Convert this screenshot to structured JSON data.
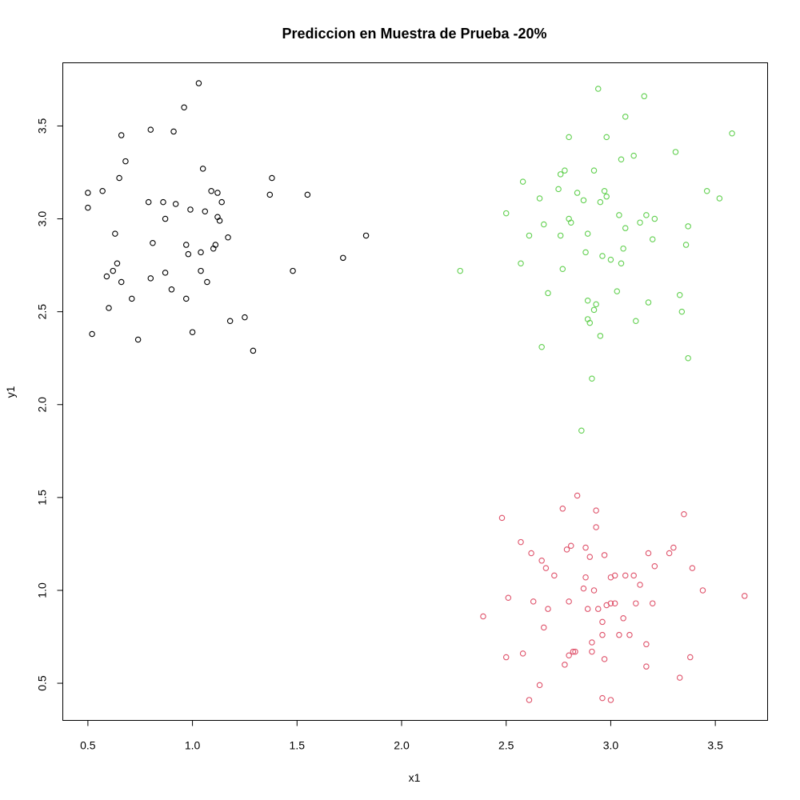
{
  "chart_data": {
    "type": "scatter",
    "title": "Prediccion en Muestra de Prueba -20%",
    "xlabel": "x1",
    "ylabel": "y1",
    "xlim": [
      0.38,
      3.75
    ],
    "ylim": [
      0.3,
      3.84
    ],
    "x_ticks": [
      0.5,
      1.0,
      1.5,
      2.0,
      2.5,
      3.0,
      3.5
    ],
    "x_tick_labels": [
      "0.5",
      "1.0",
      "1.5",
      "2.0",
      "2.5",
      "3.0",
      "3.5"
    ],
    "y_ticks": [
      0.5,
      1.0,
      1.5,
      2.0,
      2.5,
      3.0,
      3.5
    ],
    "y_tick_labels": [
      "0.5",
      "1.0",
      "1.5",
      "2.0",
      "2.5",
      "3.0",
      "3.5"
    ],
    "grid": false,
    "legend": "none",
    "series": [
      {
        "color": "#000000",
        "x": [
          0.5,
          0.5,
          0.52,
          0.57,
          0.59,
          0.6,
          0.62,
          0.63,
          0.64,
          0.65,
          0.66,
          0.66,
          0.68,
          0.71,
          0.74,
          0.79,
          0.8,
          0.8,
          0.81,
          0.86,
          0.87,
          0.87,
          0.9,
          0.91,
          0.92,
          0.96,
          0.97,
          0.97,
          0.98,
          0.99,
          1.0,
          1.03,
          1.04,
          1.04,
          1.05,
          1.06,
          1.07,
          1.09,
          1.1,
          1.11,
          1.12,
          1.12,
          1.13,
          1.14,
          1.17,
          1.18,
          1.25,
          1.29,
          1.37,
          1.38,
          1.48,
          1.55,
          1.72,
          1.83
        ],
        "y": [
          3.14,
          3.06,
          2.38,
          3.15,
          2.69,
          2.52,
          2.72,
          2.92,
          2.76,
          3.22,
          3.45,
          2.66,
          3.31,
          2.57,
          2.35,
          3.09,
          3.48,
          2.68,
          2.87,
          3.09,
          2.71,
          3.0,
          2.62,
          3.47,
          3.08,
          3.6,
          2.57,
          2.86,
          2.81,
          3.05,
          2.39,
          3.73,
          2.72,
          2.82,
          3.27,
          3.04,
          2.66,
          3.15,
          2.84,
          2.86,
          3.14,
          3.01,
          2.99,
          3.09,
          2.9,
          2.45,
          2.47,
          2.29,
          3.13,
          3.22,
          2.72,
          3.13,
          2.79,
          2.91
        ]
      },
      {
        "color": "#61D04F",
        "x": [
          2.28,
          2.5,
          2.57,
          2.58,
          2.61,
          2.66,
          2.67,
          2.68,
          2.7,
          2.75,
          2.76,
          2.76,
          2.77,
          2.78,
          2.8,
          2.8,
          2.81,
          2.84,
          2.86,
          2.87,
          2.88,
          2.89,
          2.89,
          2.89,
          2.9,
          2.91,
          2.92,
          2.92,
          2.93,
          2.94,
          2.95,
          2.95,
          2.96,
          2.97,
          2.98,
          2.98,
          3.0,
          3.03,
          3.04,
          3.05,
          3.05,
          3.06,
          3.07,
          3.07,
          3.11,
          3.12,
          3.14,
          3.16,
          3.17,
          3.18,
          3.2,
          3.21,
          3.31,
          3.33,
          3.34,
          3.36,
          3.37,
          3.37,
          3.46,
          3.52,
          3.58
        ],
        "y": [
          2.72,
          3.03,
          2.76,
          3.2,
          2.91,
          3.11,
          2.31,
          2.97,
          2.6,
          3.16,
          2.91,
          3.24,
          2.73,
          3.26,
          3.0,
          3.44,
          2.98,
          3.14,
          1.86,
          3.1,
          2.82,
          2.92,
          2.56,
          2.46,
          2.44,
          2.14,
          2.51,
          3.26,
          2.54,
          3.7,
          3.09,
          2.37,
          2.8,
          3.15,
          3.44,
          3.12,
          2.78,
          2.61,
          3.02,
          3.32,
          2.76,
          2.84,
          3.55,
          2.95,
          3.34,
          2.45,
          2.98,
          3.66,
          3.02,
          2.55,
          2.89,
          3.0,
          3.36,
          2.59,
          2.5,
          2.86,
          2.96,
          2.25,
          3.15,
          3.11,
          3.46
        ]
      },
      {
        "color": "#DF536B",
        "x": [
          2.39,
          2.48,
          2.5,
          2.51,
          2.57,
          2.58,
          2.61,
          2.62,
          2.63,
          2.66,
          2.67,
          2.68,
          2.69,
          2.7,
          2.73,
          2.77,
          2.78,
          2.79,
          2.8,
          2.8,
          2.81,
          2.82,
          2.83,
          2.84,
          2.87,
          2.88,
          2.88,
          2.89,
          2.9,
          2.91,
          2.91,
          2.92,
          2.93,
          2.93,
          2.94,
          2.96,
          2.96,
          2.96,
          2.97,
          2.97,
          2.98,
          3.0,
          3.0,
          3.0,
          3.02,
          3.02,
          3.04,
          3.06,
          3.07,
          3.09,
          3.11,
          3.12,
          3.14,
          3.17,
          3.17,
          3.18,
          3.2,
          3.21,
          3.28,
          3.3,
          3.33,
          3.35,
          3.38,
          3.39,
          3.44,
          3.64
        ],
        "y": [
          0.86,
          1.39,
          0.64,
          0.96,
          1.26,
          0.66,
          0.41,
          1.2,
          0.94,
          0.49,
          1.16,
          0.8,
          1.12,
          0.9,
          1.08,
          1.44,
          0.6,
          1.22,
          0.94,
          0.65,
          1.24,
          0.67,
          0.67,
          1.51,
          1.01,
          1.23,
          1.07,
          0.9,
          1.18,
          0.72,
          0.67,
          1.0,
          1.34,
          1.43,
          0.9,
          0.42,
          0.76,
          0.83,
          0.63,
          1.19,
          0.92,
          0.41,
          0.93,
          1.07,
          0.93,
          1.08,
          0.76,
          0.85,
          1.08,
          0.76,
          1.08,
          0.93,
          1.03,
          0.71,
          0.59,
          1.2,
          0.93,
          1.13,
          1.2,
          1.23,
          0.53,
          1.41,
          0.64,
          1.12,
          1.0,
          0.97
        ]
      }
    ]
  }
}
